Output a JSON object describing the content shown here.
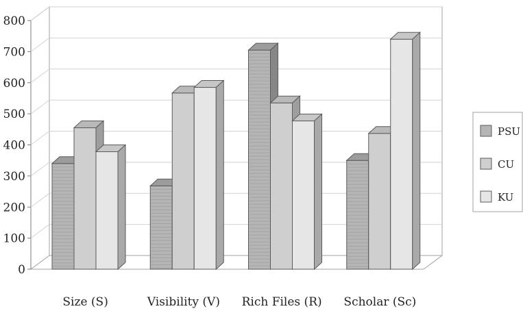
{
  "chart_data": {
    "type": "bar",
    "categories": [
      "Size (S)",
      "Visibility (V)",
      "Rich Files (R)",
      "Scholar (Sc)"
    ],
    "series": [
      {
        "name": "PSU",
        "values": [
          340,
          268,
          705,
          350
        ]
      },
      {
        "name": "CU",
        "values": [
          455,
          567,
          535,
          437
        ]
      },
      {
        "name": "KU",
        "values": [
          378,
          585,
          477,
          740
        ]
      }
    ],
    "ylim": [
      0,
      800
    ],
    "yticks": [
      "0",
      "100",
      "200",
      "300",
      "400",
      "500",
      "600",
      "700",
      "800"
    ],
    "grid": true,
    "legend": "right",
    "title": "",
    "xlabel": "",
    "ylabel": "",
    "colors": {
      "PSU": {
        "front": "#b5b5b5",
        "top": "#9c9c9c",
        "side": "#878787"
      },
      "CU": {
        "front": "#cfcfcf",
        "top": "#b9b9b9",
        "side": "#9e9e9e"
      },
      "KU": {
        "front": "#e6e6e6",
        "top": "#c7c7c7",
        "side": "#a9a9a9"
      }
    }
  }
}
